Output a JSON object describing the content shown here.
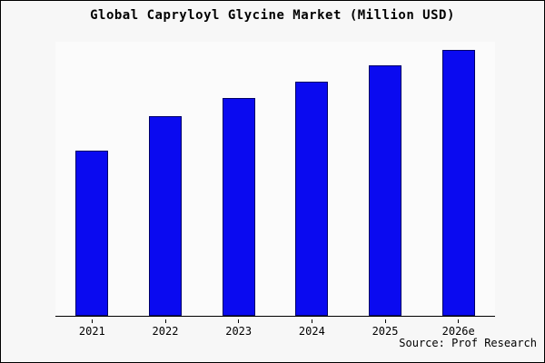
{
  "title": "Global Capryloyl Glycine Market (Million USD)",
  "source": "Source: Prof Research",
  "colors": {
    "bar": "#0a0af0",
    "bar_border": "#000066",
    "axis": "#000000",
    "frame_background": "#f7f7f7",
    "plot_background": "#fbfbfb"
  },
  "chart_data": {
    "type": "bar",
    "title": "Global Capryloyl Glycine Market (Million USD)",
    "categories": [
      "2021",
      "2022",
      "2023",
      "2024",
      "2025",
      "2026e"
    ],
    "values": [
      62,
      75,
      82,
      88,
      94,
      100
    ],
    "xlabel": "",
    "ylabel": "",
    "ylim": [
      0,
      103
    ],
    "grid": false,
    "legend": false,
    "y_axis_ticks_visible": false,
    "source": "Source: Prof Research"
  }
}
